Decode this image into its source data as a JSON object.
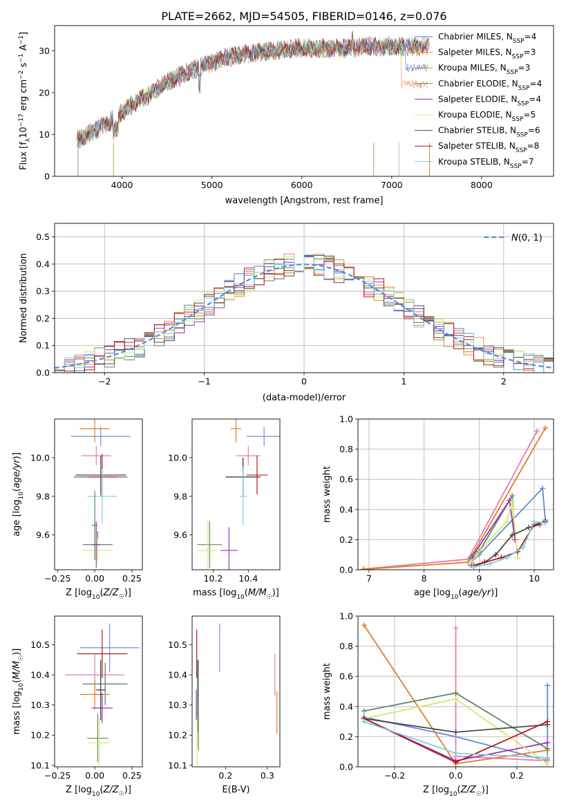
{
  "figure_title": "PLATE=2662, MJD=54505, FIBERID=0146, z=0.076",
  "fit_colors": [
    "#4c72b0",
    "#dd8452",
    "#55a868",
    "#c44e52",
    "#8172b2",
    "#937860",
    "#da8bc3",
    "#8c8c8c",
    "#ccb974",
    "#64b5cd"
  ],
  "chart_data": [
    {
      "id": "spectrum",
      "type": "line",
      "title": "PLATE=2662, MJD=54505, FIBERID=0146, z=0.076",
      "xlabel": "wavelength [Angstrom, rest frame]",
      "ylabel": "Flux [fλ10⁻¹⁷ erg cm⁻² s⁻¹ A⁻¹]",
      "xlim": [
        3250,
        8800
      ],
      "ylim": [
        0,
        36
      ],
      "xticks": [
        4000,
        5000,
        6000,
        7000,
        8000
      ],
      "yticks": [
        0,
        10,
        20,
        30
      ],
      "grid": false,
      "legend_position": "top-right",
      "continuum_x": [
        3500,
        3700,
        3900,
        4100,
        4300,
        4500,
        4700,
        4900,
        5100,
        5300,
        5500,
        5700,
        5900,
        6100,
        6300,
        6500,
        6700,
        6900,
        7100,
        7300,
        7400
      ],
      "continuum_y": [
        8.5,
        11.0,
        13.5,
        17.0,
        19.5,
        22.5,
        24.5,
        26.5,
        28.0,
        29.0,
        29.5,
        30.0,
        30.5,
        30.5,
        30.5,
        30.5,
        31.0,
        31.0,
        31.0,
        31.0,
        31.0
      ],
      "series": [
        {
          "name": "Chabrier MILES, N_SSP=4",
          "label_main": "Chabrier MILES, N",
          "label_sub": "SSP",
          "label_tail": "=4",
          "color": "#4878d0"
        },
        {
          "name": "Salpeter MILES, N_SSP=3",
          "label_main": "Salpeter MILES, N",
          "label_sub": "SSP",
          "label_tail": "=3",
          "color": "#ee854a"
        },
        {
          "name": "Kroupa MILES, N_SSP=3",
          "label_main": "Kroupa MILES, N",
          "label_sub": "SSP",
          "label_tail": "=3",
          "color": "#d5821d"
        },
        {
          "name": "Chabrier ELODIE, N_SSP=4",
          "label_main": "Chabrier ELODIE, N",
          "label_sub": "SSP",
          "label_tail": "=4",
          "color": "#5b8a5f"
        },
        {
          "name": "Salpeter ELODIE, N_SSP=4",
          "label_main": "Salpeter ELODIE, N",
          "label_sub": "SSP",
          "label_tail": "=4",
          "color": "#9b30b6"
        },
        {
          "name": "Kroupa ELODIE, N_SSP=5",
          "label_main": "Kroupa ELODIE, N",
          "label_sub": "SSP",
          "label_tail": "=5",
          "color": "#d6e86c"
        },
        {
          "name": "Chabrier STELIB, N_SSP=6",
          "label_main": "Chabrier STELIB, N",
          "label_sub": "SSP",
          "label_tail": "=6",
          "color": "#4a4a4a"
        },
        {
          "name": "Salpeter STELIB, N_SSP=8",
          "label_main": "Salpeter STELIB, N",
          "label_sub": "SSP",
          "label_tail": "=8",
          "color": "#b2181b"
        },
        {
          "name": "Kroupa STELIB, N_SSP=7",
          "label_main": "Kroupa STELIB, N",
          "label_sub": "SSP",
          "label_tail": "=7",
          "color": "#7fcbe0"
        }
      ]
    },
    {
      "id": "residuals",
      "type": "line",
      "xlabel": "(data-model)/error",
      "ylabel": "Normed distribution",
      "xlim": [
        -2.5,
        2.5
      ],
      "ylim": [
        0,
        0.55
      ],
      "xticks": [
        -2,
        -1,
        0,
        1,
        2
      ],
      "yticks": [
        0.0,
        0.1,
        0.2,
        0.3,
        0.4,
        0.5
      ],
      "grid": true,
      "legend_position": "top-right",
      "reference_curve": {
        "name": "N(0,1)",
        "type": "gaussian",
        "mean": 0,
        "sigma": 1,
        "color": "#5b8bd9"
      },
      "bin_width": 0.1,
      "series_colors": [
        "#4878d0",
        "#ee854a",
        "#d5821d",
        "#5b8a5f",
        "#9b30b6",
        "#d6e86c",
        "#4a4a4a",
        "#b2181b",
        "#7fcbe0"
      ]
    },
    {
      "id": "age_vs_Z",
      "type": "scatter",
      "xlabel": "Z [log10(Z/Z☉)]",
      "ylabel": "age [log10(age/yr)]",
      "xlim": [
        -0.27,
        0.32
      ],
      "ylim": [
        9.42,
        10.2
      ],
      "xticks": [
        -0.25,
        0.0,
        0.25
      ],
      "yticks": [
        9.6,
        9.8,
        10.0
      ],
      "grid": false,
      "points": [
        {
          "x": 0.04,
          "y": 10.11,
          "xerr": 0.2,
          "yerr": 0.05,
          "color": "#6f8fd9"
        },
        {
          "x": 0.0,
          "y": 10.15,
          "xerr": 0.1,
          "yerr": 0.07,
          "color": "#e07b25"
        },
        {
          "x": 0.01,
          "y": 10.01,
          "xerr": 0.1,
          "yerr": 0.05,
          "color": "#e878b3"
        },
        {
          "x": 0.04,
          "y": 9.91,
          "xerr": 0.17,
          "yerr": 0.1,
          "color": "#2e2e2e"
        },
        {
          "x": 0.04,
          "y": 9.9,
          "xerr": 0.18,
          "yerr": 0.1,
          "color": "#666666"
        },
        {
          "x": 0.05,
          "y": 9.9,
          "xerr": 0.1,
          "yerr": 0.12,
          "color": "#b2181b"
        },
        {
          "x": 0.05,
          "y": 9.8,
          "xerr": 0.1,
          "yerr": 0.14,
          "color": "#7fcbe0"
        },
        {
          "x": 0.02,
          "y": 9.55,
          "xerr": 0.1,
          "yerr": 0.07,
          "color": "#4a7a62"
        },
        {
          "x": 0.02,
          "y": 9.52,
          "xerr": 0.1,
          "yerr": 0.06,
          "color": "#d6e86c"
        },
        {
          "x": 0.0,
          "y": 9.65,
          "xerr": 0.02,
          "yerr": 0.18,
          "color": "#5b8a5f"
        },
        {
          "x": 0.01,
          "y": 9.55,
          "xerr": 0.03,
          "yerr": 0.12,
          "color": "#9b30b6"
        }
      ]
    },
    {
      "id": "age_vs_mass",
      "type": "scatter",
      "xlabel": "mass [log10(M/M☉)]",
      "ylabel": "",
      "xlim": [
        10.08,
        10.58
      ],
      "ylim": [
        9.42,
        10.2
      ],
      "xticks": [
        10.2,
        10.4
      ],
      "yticks": [
        9.6,
        9.8,
        10.0
      ],
      "grid": false,
      "points": [
        {
          "x": 10.49,
          "y": 10.11,
          "xerr": 0.1,
          "yerr": 0.05,
          "color": "#6f8fd9"
        },
        {
          "x": 10.33,
          "y": 10.15,
          "xerr": 0.03,
          "yerr": 0.07,
          "color": "#e07b25"
        },
        {
          "x": 10.4,
          "y": 10.01,
          "xerr": 0.07,
          "yerr": 0.05,
          "color": "#e878b3"
        },
        {
          "x": 10.37,
          "y": 9.9,
          "xerr": 0.1,
          "yerr": 0.1,
          "color": "#2e2e2e"
        },
        {
          "x": 10.45,
          "y": 9.91,
          "xerr": 0.06,
          "yerr": 0.1,
          "color": "#b2181b"
        },
        {
          "x": 10.37,
          "y": 9.8,
          "xerr": 0.02,
          "yerr": 0.15,
          "color": "#7fcbe0"
        },
        {
          "x": 10.18,
          "y": 9.55,
          "xerr": 0.07,
          "yerr": 0.12,
          "color": "#5b8a5f"
        },
        {
          "x": 10.17,
          "y": 9.52,
          "xerr": 0.06,
          "yerr": 0.16,
          "color": "#d6e86c"
        },
        {
          "x": 10.29,
          "y": 9.52,
          "xerr": 0.05,
          "yerr": 0.12,
          "color": "#9b30b6"
        }
      ]
    },
    {
      "id": "weight_vs_age",
      "type": "line",
      "xlabel": "age [log10(age/yr)]",
      "ylabel": "mass weight",
      "xlim": [
        6.8,
        10.35
      ],
      "ylim": [
        0,
        1.0
      ],
      "xticks": [
        7,
        8,
        9,
        10
      ],
      "yticks": [
        0.0,
        0.2,
        0.4,
        0.6,
        0.8,
        1.0
      ],
      "grid": true,
      "series": [
        {
          "name": "Chabrier MILES",
          "color": "#5b8bd9",
          "x": [
            8.85,
            9.0,
            10.15,
            10.2
          ],
          "y": [
            0.05,
            0.1,
            0.54,
            0.33
          ]
        },
        {
          "name": "Salpeter MILES",
          "color": "#e878b3",
          "x": [
            6.9,
            8.8,
            10.05
          ],
          "y": [
            0.005,
            0.07,
            0.92
          ]
        },
        {
          "name": "Kroupa MILES",
          "color": "#e07b25",
          "x": [
            6.9,
            8.8,
            10.2
          ],
          "y": [
            0.003,
            0.05,
            0.94
          ]
        },
        {
          "name": "Chabrier ELODIE",
          "color": "#5b8a5f",
          "x": [
            8.85,
            9.0,
            9.6,
            9.65
          ],
          "y": [
            0.08,
            0.12,
            0.49,
            0.2
          ]
        },
        {
          "name": "Salpeter ELODIE",
          "color": "#9b30b6",
          "x": [
            8.85,
            8.9,
            9.55,
            9.65
          ],
          "y": [
            0.03,
            0.1,
            0.46,
            0.2
          ]
        },
        {
          "name": "Kroupa ELODIE",
          "color": "#d6e86c",
          "x": [
            8.85,
            8.95,
            9.5,
            9.6,
            9.7
          ],
          "y": [
            0.05,
            0.1,
            0.32,
            0.45,
            0.08
          ]
        },
        {
          "name": "Chabrier STELIB",
          "color": "#4a4a4a",
          "x": [
            8.9,
            9.1,
            9.3,
            9.6,
            9.9,
            10.1
          ],
          "y": [
            0.03,
            0.05,
            0.1,
            0.23,
            0.28,
            0.3
          ]
        },
        {
          "name": "Salpeter STELIB",
          "color": "#b2181b",
          "x": [
            8.9,
            9.1,
            9.4,
            9.7,
            10.0,
            10.2
          ],
          "y": [
            0.02,
            0.05,
            0.08,
            0.12,
            0.3,
            0.32
          ]
        },
        {
          "name": "Kroupa STELIB",
          "color": "#7fcbe0",
          "x": [
            8.9,
            9.2,
            9.5,
            9.8,
            10.0,
            10.2
          ],
          "y": [
            0.02,
            0.04,
            0.08,
            0.15,
            0.32,
            0.31
          ]
        }
      ]
    },
    {
      "id": "mass_vs_Z",
      "type": "scatter",
      "xlabel": "Z [log10(Z/Z☉)]",
      "ylabel": "mass [log10(M/M☉)]",
      "xlim": [
        -0.27,
        0.32
      ],
      "ylim": [
        10.095,
        10.595
      ],
      "xticks": [
        -0.25,
        0.0,
        0.25
      ],
      "yticks": [
        10.1,
        10.2,
        10.3,
        10.4,
        10.5
      ],
      "grid": false,
      "points": [
        {
          "x": 0.1,
          "y": 10.49,
          "xerr": 0.2,
          "yerr": 0.08,
          "color": "#6f8fd9"
        },
        {
          "x": 0.05,
          "y": 10.47,
          "xerr": 0.17,
          "yerr": 0.08,
          "color": "#b2181b"
        },
        {
          "x": 0.0,
          "y": 10.4,
          "xerr": 0.2,
          "yerr": 0.07,
          "color": "#e878b3"
        },
        {
          "x": 0.07,
          "y": 10.37,
          "xerr": 0.15,
          "yerr": 0.07,
          "color": "#4a7a62"
        },
        {
          "x": 0.0,
          "y": 10.335,
          "xerr": 0.1,
          "yerr": 0.05,
          "color": "#e07b25"
        },
        {
          "x": 0.05,
          "y": 10.29,
          "xerr": 0.07,
          "yerr": 0.05,
          "color": "#9b30b6"
        },
        {
          "x": 0.02,
          "y": 10.19,
          "xerr": 0.07,
          "yerr": 0.08,
          "color": "#5b8a5f"
        },
        {
          "x": 0.03,
          "y": 10.175,
          "xerr": 0.07,
          "yerr": 0.08,
          "color": "#d6e86c"
        },
        {
          "x": 0.04,
          "y": 10.35,
          "xerr": 0.03,
          "yerr": 0.1,
          "color": "#2e2e2e"
        }
      ]
    },
    {
      "id": "mass_vs_ebv",
      "type": "scatter",
      "xlabel": "E(B-V)",
      "ylabel": "",
      "xlim": [
        0.12,
        0.33
      ],
      "ylim": [
        10.095,
        10.595
      ],
      "xticks": [
        0.2,
        0.3
      ],
      "yticks": [
        10.1,
        10.2,
        10.3,
        10.4,
        10.5
      ],
      "grid": false,
      "points": [
        {
          "x": 0.186,
          "y": 10.49,
          "yerr": 0.08,
          "color": "#6f8fd9"
        },
        {
          "x": 0.131,
          "y": 10.47,
          "yerr": 0.08,
          "color": "#b2181b"
        },
        {
          "x": 0.133,
          "y": 10.33,
          "yerr": 0.12,
          "color": "#4a7a62"
        },
        {
          "x": 0.135,
          "y": 10.3,
          "yerr": 0.15,
          "color": "#5b8a5f"
        },
        {
          "x": 0.132,
          "y": 10.18,
          "yerr": 0.08,
          "color": "#d6e86c"
        },
        {
          "x": 0.13,
          "y": 10.3,
          "yerr": 0.05,
          "color": "#9b30b6"
        },
        {
          "x": 0.318,
          "y": 10.4,
          "yerr": 0.07,
          "color": "#e878b3"
        },
        {
          "x": 0.323,
          "y": 10.275,
          "yerr": 0.07,
          "color": "#e07b25"
        }
      ]
    },
    {
      "id": "weight_vs_Z",
      "type": "line",
      "xlabel": "Z [log10(Z/Z☉)]",
      "ylabel": "mass weight",
      "xlim": [
        -0.32,
        0.32
      ],
      "ylim": [
        0,
        1.0
      ],
      "xticks": [
        -0.2,
        0.0,
        0.2
      ],
      "yticks": [
        0.0,
        0.2,
        0.4,
        0.6,
        0.8,
        1.0
      ],
      "grid": true,
      "series": [
        {
          "name": "Chabrier MILES",
          "color": "#5b8bd9",
          "x": [
            -0.3,
            0.0,
            0.3,
            0.3
          ],
          "y": [
            0.33,
            0.2,
            0.04,
            0.54
          ]
        },
        {
          "name": "Salpeter MILES",
          "color": "#e878b3",
          "x": [
            0.0,
            0.0,
            0.3,
            0.3
          ],
          "y": [
            0.92,
            0.07,
            0.04,
            0.05
          ]
        },
        {
          "name": "Kroupa MILES",
          "color": "#e07b25",
          "x": [
            -0.3,
            0.0,
            0.3
          ],
          "y": [
            0.94,
            0.02,
            0.11
          ]
        },
        {
          "name": "Chabrier ELODIE",
          "color": "#5b8a5f",
          "x": [
            -0.3,
            0.0,
            0.3
          ],
          "y": [
            0.37,
            0.49,
            0.12
          ]
        },
        {
          "name": "Salpeter ELODIE",
          "color": "#9b30b6",
          "x": [
            -0.3,
            0.0,
            0.3
          ],
          "y": [
            0.32,
            0.04,
            0.16
          ]
        },
        {
          "name": "Kroupa ELODIE",
          "color": "#d6e86c",
          "x": [
            -0.3,
            0.0,
            0.3
          ],
          "y": [
            0.32,
            0.45,
            0.02
          ]
        },
        {
          "name": "Chabrier STELIB",
          "color": "#4a4a4a",
          "x": [
            -0.3,
            0.0,
            0.3
          ],
          "y": [
            0.32,
            0.23,
            0.28
          ]
        },
        {
          "name": "Salpeter STELIB",
          "color": "#b2181b",
          "x": [
            -0.3,
            0.0,
            0.3
          ],
          "y": [
            0.32,
            0.03,
            0.3
          ]
        },
        {
          "name": "Kroupa STELIB",
          "color": "#7fcbe0",
          "x": [
            -0.3,
            0.0,
            0.3
          ],
          "y": [
            0.3,
            0.09,
            0.06
          ]
        }
      ]
    }
  ]
}
